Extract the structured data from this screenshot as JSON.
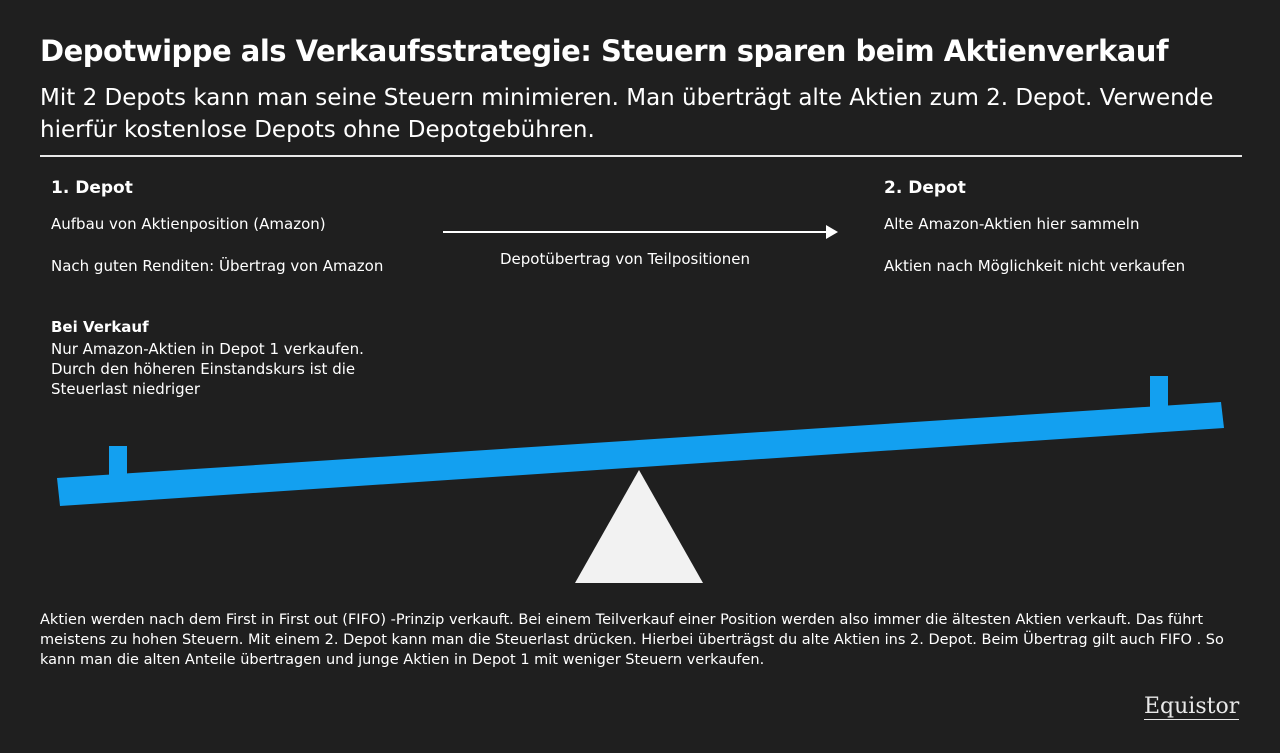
{
  "header": {
    "title": "Depotwippe als Verkaufsstrategie: Steuern sparen beim Aktienverkauf",
    "subtitle": "Mit 2 Depots kann man seine Steuern minimieren. Man überträgt alte Aktien zum 2. Depot. Verwende hierfür kostenlose Depots ohne Depotgebühren."
  },
  "depot1": {
    "title": "1. Depot",
    "lines": [
      "Aufbau von Aktienposition (Amazon)",
      "Nach guten Renditen: Übertrag von Amazon"
    ],
    "sale_title": "Bei Verkauf",
    "sale_text": "Nur Amazon-Aktien in Depot 1 verkaufen. Durch den höheren Einstandskurs ist die Steuerlast niedriger"
  },
  "transfer": {
    "label": "Depotübertrag von Teilpositionen"
  },
  "depot2": {
    "title": "2. Depot",
    "lines": [
      "Alte Amazon-Aktien hier sammeln",
      "Aktien nach Möglichkeit nicht verkaufen"
    ]
  },
  "footer": {
    "text": "Aktien werden nach dem First in First out (FIFO) -Prinzip verkauft. Bei einem Teilverkauf einer Position werden also immer die ältesten Aktien verkauft. Das führt meistens zu hohen Steuern. Mit einem 2. Depot kann man die Steuerlast drücken. Hierbei überträgst du alte Aktien ins 2. Depot. Beim Übertrag gilt auch FIFO . So kann man die alten Anteile übertragen und junge Aktien in Depot 1 mit weniger Steuern verkaufen.",
    "brand": "Equistor"
  }
}
